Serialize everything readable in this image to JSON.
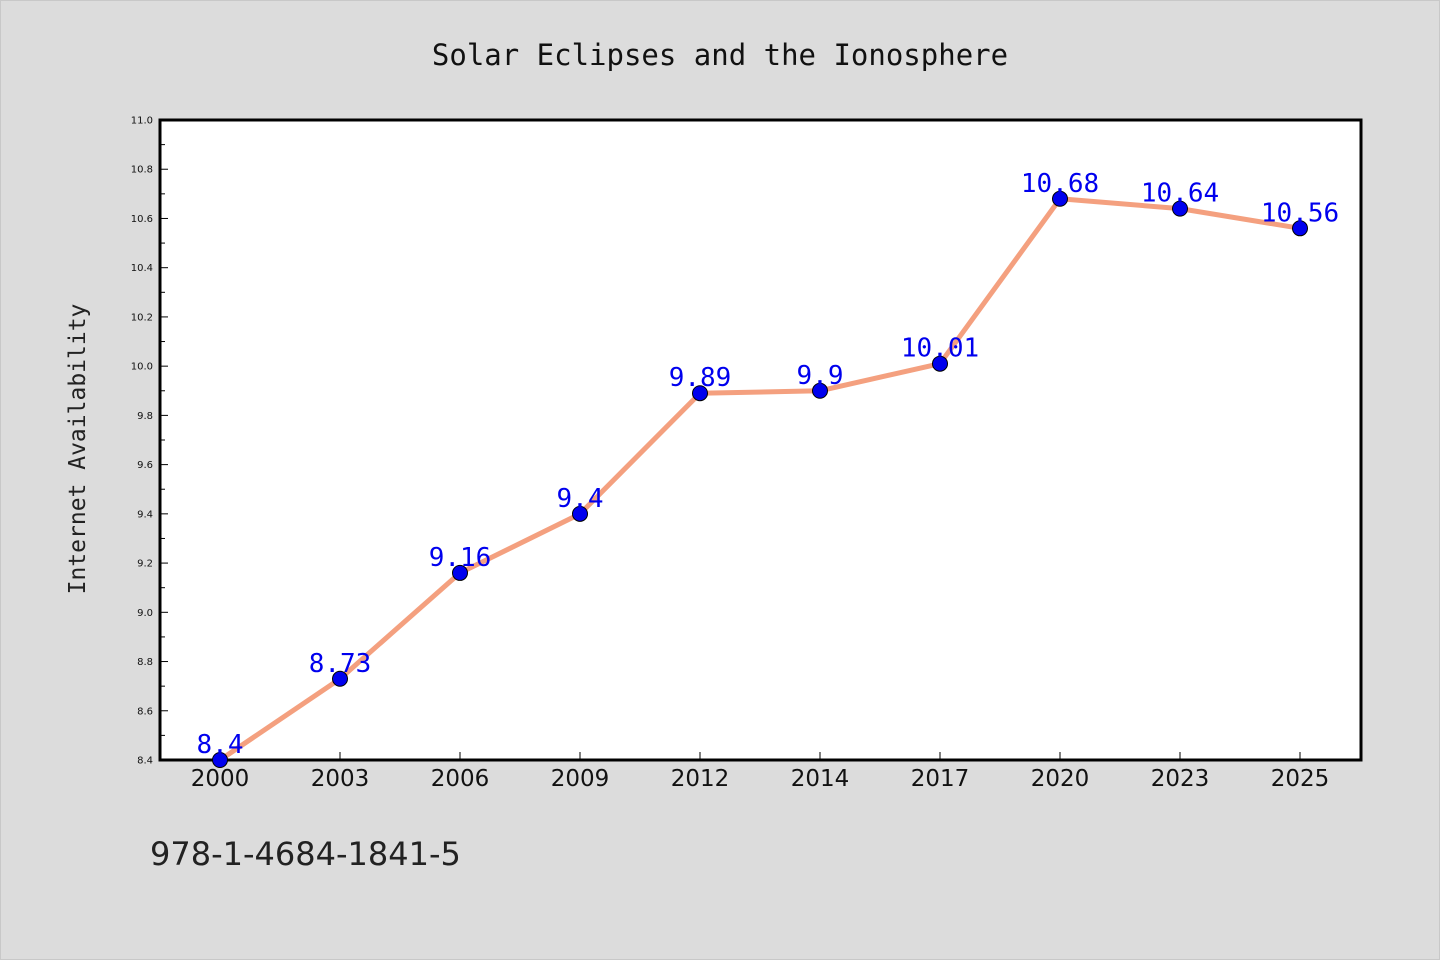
{
  "footnote": "978-1-4684-1841-5",
  "colors": {
    "background": "#dcdcdc",
    "plot_background": "#ffffff",
    "line": "#f4a07f",
    "marker": "#0000ee",
    "data_label": "#0000ee",
    "axis": "#000000"
  },
  "chart_data": {
    "type": "line",
    "title": "Solar Eclipses and the Ionosphere",
    "xlabel": "",
    "ylabel": "Internet Availability",
    "categories": [
      "2000",
      "2003",
      "2006",
      "2009",
      "2012",
      "2014",
      "2017",
      "2020",
      "2023",
      "2025"
    ],
    "series": [
      {
        "values": [
          8.4,
          8.73,
          9.16,
          9.4,
          9.89,
          9.9,
          10.01,
          10.68,
          10.64,
          10.56
        ],
        "data_labels": [
          "8.4",
          "8.73",
          "9.16",
          "9.4",
          "9.89",
          "9.9",
          "10.01",
          "10.68",
          "10.64",
          "10.56"
        ]
      }
    ],
    "ylim": [
      8.4,
      11.0
    ],
    "yticks": [
      "8.4",
      "8.6",
      "8.8",
      "9.0",
      "9.2",
      "9.4",
      "9.6",
      "9.8",
      "10.0",
      "10.2",
      "10.4",
      "10.6",
      "10.8",
      "11.0"
    ],
    "grid": false,
    "legend": "none",
    "markers": "filled circles"
  }
}
